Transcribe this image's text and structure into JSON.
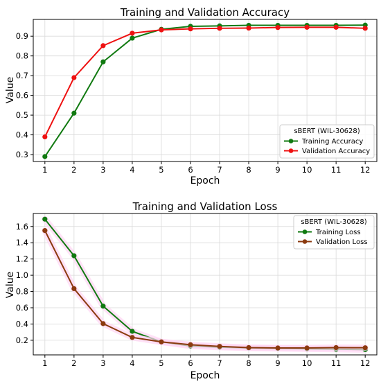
{
  "chart_data": [
    {
      "type": "line",
      "title": "Training and Validation Accuracy",
      "xlabel": "Epoch",
      "ylabel": "Value",
      "x": [
        1,
        2,
        3,
        4,
        5,
        6,
        7,
        8,
        9,
        10,
        11,
        12
      ],
      "xlim": [
        0.6,
        12.4
      ],
      "ylim": [
        0.265,
        0.985
      ],
      "yticks": [
        0.3,
        0.4,
        0.5,
        0.6,
        0.7,
        0.8,
        0.9
      ],
      "ytick_labels": [
        "0.3",
        "0.4",
        "0.5",
        "0.6",
        "0.7",
        "0.8",
        "0.9"
      ],
      "grid": true,
      "legend": {
        "title": "sBERT (WIL-30628)",
        "placement": "lower right"
      },
      "series": [
        {
          "name": "Training Accuracy",
          "color": "#117a11",
          "values": [
            0.29,
            0.51,
            0.77,
            0.89,
            0.935,
            0.95,
            0.952,
            0.955,
            0.955,
            0.955,
            0.955,
            0.956
          ]
        },
        {
          "name": "Validation Accuracy",
          "color": "#ee1111",
          "values": [
            0.39,
            0.69,
            0.852,
            0.915,
            0.932,
            0.937,
            0.94,
            0.941,
            0.944,
            0.945,
            0.945,
            0.94
          ]
        }
      ]
    },
    {
      "type": "line",
      "title": "Training and Validation Loss",
      "xlabel": "Epoch",
      "ylabel": "Value",
      "x": [
        1,
        2,
        3,
        4,
        5,
        6,
        7,
        8,
        9,
        10,
        11,
        12
      ],
      "xlim": [
        0.6,
        12.4
      ],
      "ylim": [
        0.02,
        1.76
      ],
      "yticks": [
        0.2,
        0.4,
        0.6,
        0.8,
        1.0,
        1.2,
        1.4,
        1.6
      ],
      "ytick_labels": [
        "0.2",
        "0.4",
        "0.6",
        "0.8",
        "1.0",
        "1.2",
        "1.4",
        "1.6"
      ],
      "grid": true,
      "legend": {
        "title": "sBERT (WIL-30628)",
        "placement": "upper right"
      },
      "series": [
        {
          "name": "Training Loss",
          "color": "#117a11",
          "values": [
            1.69,
            1.24,
            0.62,
            0.31,
            0.18,
            0.13,
            0.115,
            0.105,
            0.1,
            0.095,
            0.09,
            0.085
          ]
        },
        {
          "name": "Validation Loss",
          "color": "#8b3a0f",
          "values": [
            1.55,
            0.835,
            0.405,
            0.235,
            0.18,
            0.145,
            0.125,
            0.11,
            0.105,
            0.105,
            0.11,
            0.108
          ]
        }
      ]
    }
  ]
}
